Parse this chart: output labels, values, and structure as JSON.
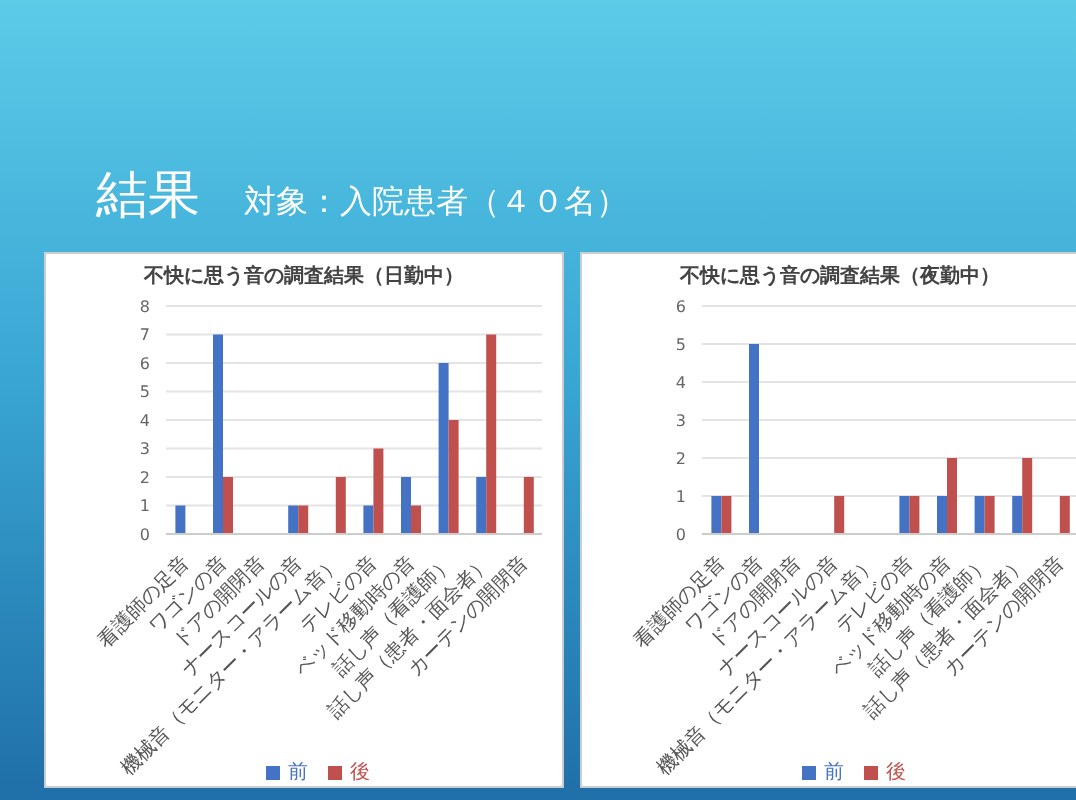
{
  "chart_data": [
    {
      "type": "bar",
      "title": "不快に思う音の調査結果（日勤中）",
      "annotations": [
        "結果",
        "対象：入院患者（４０名）"
      ],
      "categories": [
        "看護師の足音",
        "ワゴンの音",
        "ドアの開閉音",
        "ナースコールの音",
        "機械音（モニター・アラーム音）",
        "テレビの音",
        "ベッド移動時の音",
        "話し声（看護師）",
        "話し声（患者・面会者）",
        "カーテンの開閉音"
      ],
      "series": [
        {
          "name": "前",
          "color": "#4472c4",
          "values": [
            1,
            7,
            0,
            1,
            0,
            1,
            2,
            6,
            2,
            0
          ]
        },
        {
          "name": "後",
          "color": "#c0504d",
          "values": [
            0,
            2,
            0,
            1,
            2,
            3,
            1,
            4,
            7,
            2
          ]
        }
      ],
      "ylim": [
        0,
        8
      ],
      "yticks": [
        0,
        1,
        2,
        3,
        4,
        5,
        6,
        7,
        8
      ],
      "grid": "y",
      "legend": "bottom"
    },
    {
      "type": "bar",
      "title": "不快に思う音の調査結果（夜勤中）",
      "categories": [
        "看護師の足音",
        "ワゴンの音",
        "ドアの開閉音",
        "ナースコールの音",
        "機械音（モニター・アラーム音）",
        "テレビの音",
        "ベッド移動時の音",
        "話し声（看護師）",
        "話し声（患者・面会者）",
        "カーテンの開閉音"
      ],
      "series": [
        {
          "name": "前",
          "color": "#4472c4",
          "values": [
            1,
            5,
            0,
            0,
            0,
            1,
            1,
            1,
            1,
            0
          ]
        },
        {
          "name": "後",
          "color": "#c0504d",
          "values": [
            1,
            0,
            0,
            1,
            0,
            1,
            2,
            1,
            2,
            1
          ]
        }
      ],
      "ylim": [
        0,
        6
      ],
      "yticks": [
        0,
        1,
        2,
        3,
        4,
        5,
        6
      ],
      "grid": "y",
      "legend": "bottom"
    }
  ]
}
